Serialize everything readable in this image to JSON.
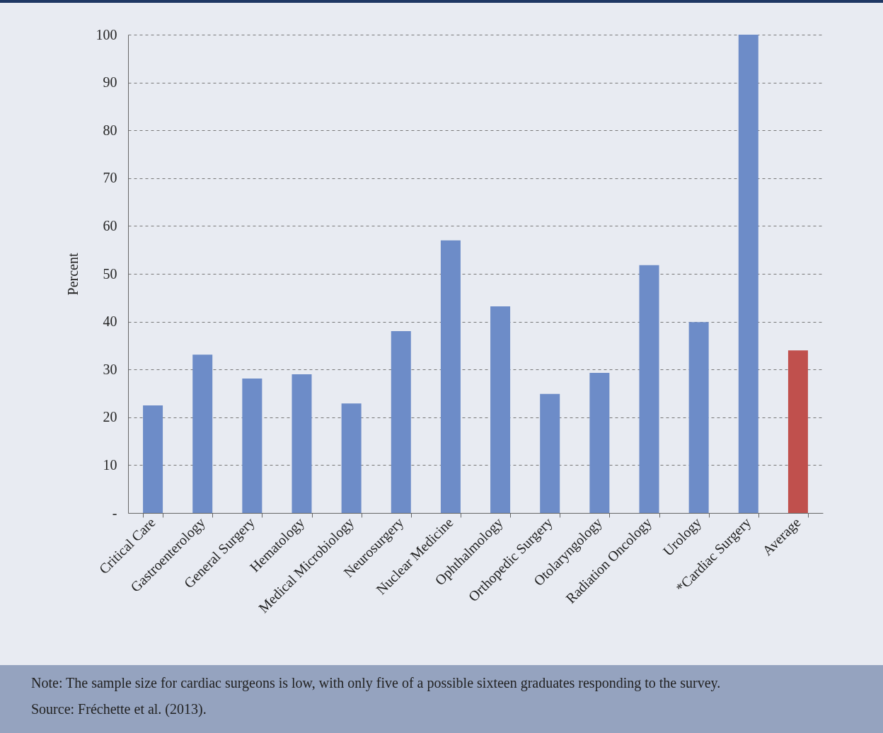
{
  "chart_data": {
    "type": "bar",
    "ylabel": "Percent",
    "categories": [
      "Critical Care",
      "Gastroenterology",
      "General Surgery",
      "Hematology",
      "Medical Microbiology",
      "Neurosurgery",
      "Nuclear Medicine",
      "Ophthalmology",
      "Orthopedic Surgery",
      "Otolaryngology",
      "Radiation Oncology",
      "Urology",
      "*Cardiac Surgery",
      "Average"
    ],
    "values": [
      22.5,
      33.1,
      28.1,
      29.0,
      22.9,
      38.0,
      57.0,
      43.2,
      24.9,
      29.3,
      51.8,
      39.9,
      100,
      34.0
    ],
    "colors": [
      "#6d8cc8",
      "#6d8cc8",
      "#6d8cc8",
      "#6d8cc8",
      "#6d8cc8",
      "#6d8cc8",
      "#6d8cc8",
      "#6d8cc8",
      "#6d8cc8",
      "#6d8cc8",
      "#6d8cc8",
      "#6d8cc8",
      "#6d8cc8",
      "#c0504d"
    ],
    "ylim": [
      0,
      100
    ],
    "yticks": [
      {
        "value": 0,
        "label": "-"
      },
      10,
      20,
      30,
      40,
      50,
      60,
      70,
      80,
      90,
      100
    ],
    "grid": "y",
    "annotations": [
      "Note: The sample size for cardiac surgeons is low, with only five of a possible sixteen graduates responding to the survey.",
      "Source: Fréchette et al. (2013)."
    ]
  }
}
